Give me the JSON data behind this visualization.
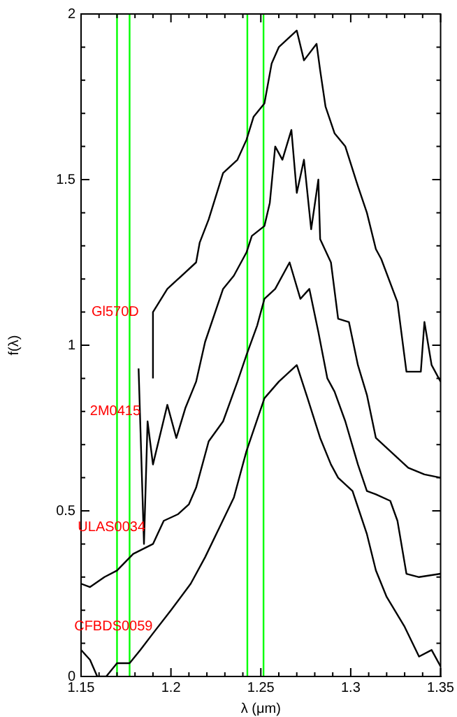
{
  "chart_data": {
    "type": "line",
    "xlabel": "λ (μm)",
    "ylabel": "f(λ)",
    "xlim": [
      1.15,
      1.35
    ],
    "ylim": [
      0,
      2
    ],
    "xticks": [
      1.15,
      {
        "value": 1.16,
        "label": null
      },
      {
        "value": 1.17,
        "label": null
      },
      {
        "value": 1.18,
        "label": null
      },
      {
        "value": 1.19,
        "label": null
      },
      1.2,
      {
        "value": 1.21,
        "label": null
      },
      {
        "value": 1.22,
        "label": null
      },
      {
        "value": 1.23,
        "label": null
      },
      {
        "value": 1.24,
        "label": null
      },
      1.25,
      {
        "value": 1.26,
        "label": null
      },
      {
        "value": 1.27,
        "label": null
      },
      {
        "value": 1.28,
        "label": null
      },
      {
        "value": 1.29,
        "label": null
      },
      1.3,
      {
        "value": 1.31,
        "label": null
      },
      {
        "value": 1.32,
        "label": null
      },
      {
        "value": 1.33,
        "label": null
      },
      {
        "value": 1.34,
        "label": null
      },
      1.35
    ],
    "yticks": [
      0,
      {
        "value": 0.1,
        "label": null
      },
      {
        "value": 0.2,
        "label": null
      },
      {
        "value": 0.3,
        "label": null
      },
      {
        "value": 0.4,
        "label": null
      },
      0.5,
      {
        "value": 0.6,
        "label": null
      },
      {
        "value": 0.7,
        "label": null
      },
      {
        "value": 0.8,
        "label": null
      },
      {
        "value": 0.9,
        "label": null
      },
      1,
      {
        "value": 1.1,
        "label": null
      },
      {
        "value": 1.2,
        "label": null
      },
      {
        "value": 1.3,
        "label": null
      },
      {
        "value": 1.4,
        "label": null
      },
      1.5,
      {
        "value": 1.6,
        "label": null
      },
      {
        "value": 1.7,
        "label": null
      },
      {
        "value": 1.8,
        "label": null
      },
      {
        "value": 1.9,
        "label": null
      },
      2
    ],
    "grid": false,
    "legend": false,
    "marker": "none",
    "line_style": "solid",
    "series": [
      {
        "color": "#000000",
        "x": [
          1.19,
          1.19,
          1.198,
          1.214,
          1.216,
          1.221,
          1.229,
          1.237,
          1.242,
          1.246,
          1.252,
          1.256,
          1.26,
          1.264,
          1.27,
          1.274,
          1.281,
          1.283,
          1.286,
          1.291,
          1.297,
          1.304,
          1.309,
          1.314,
          1.317,
          1.326,
          1.331,
          1.339,
          1.341,
          1.345,
          1.35
        ],
        "values": [
          0.9,
          1.1,
          1.17,
          1.25,
          1.31,
          1.38,
          1.52,
          1.56,
          1.62,
          1.69,
          1.73,
          1.85,
          1.9,
          1.92,
          1.95,
          1.86,
          1.91,
          1.83,
          1.72,
          1.64,
          1.6,
          1.48,
          1.4,
          1.29,
          1.26,
          1.13,
          0.92,
          0.92,
          1.07,
          0.94,
          0.89
        ]
      },
      {
        "color": "#000000",
        "x": [
          1.182,
          1.185,
          1.187,
          1.19,
          1.198,
          1.203,
          1.208,
          1.214,
          1.219,
          1.229,
          1.235,
          1.242,
          1.245,
          1.252,
          1.255,
          1.258,
          1.262,
          1.267,
          1.27,
          1.274,
          1.278,
          1.282,
          1.283,
          1.289,
          1.293,
          1.299,
          1.304,
          1.309,
          1.314,
          1.324,
          1.332,
          1.341,
          1.35
        ],
        "values": [
          0.93,
          0.4,
          0.77,
          0.64,
          0.82,
          0.72,
          0.81,
          0.89,
          1.01,
          1.17,
          1.21,
          1.28,
          1.33,
          1.36,
          1.43,
          1.6,
          1.56,
          1.65,
          1.46,
          1.56,
          1.35,
          1.5,
          1.32,
          1.25,
          1.08,
          1.07,
          0.94,
          0.85,
          0.72,
          0.67,
          0.63,
          0.61,
          0.6
        ]
      },
      {
        "color": "#000000",
        "x": [
          1.15,
          1.155,
          1.163,
          1.17,
          1.179,
          1.19,
          1.196,
          1.204,
          1.21,
          1.214,
          1.221,
          1.229,
          1.237,
          1.242,
          1.248,
          1.252,
          1.258,
          1.266,
          1.272,
          1.277,
          1.282,
          1.287,
          1.291,
          1.297,
          1.304,
          1.309,
          1.314,
          1.322,
          1.326,
          1.331,
          1.338,
          1.35
        ],
        "values": [
          0.28,
          0.27,
          0.3,
          0.32,
          0.37,
          0.4,
          0.47,
          0.49,
          0.52,
          0.57,
          0.71,
          0.77,
          0.89,
          0.97,
          1.06,
          1.14,
          1.17,
          1.25,
          1.14,
          1.17,
          1.04,
          0.9,
          0.86,
          0.77,
          0.64,
          0.56,
          0.55,
          0.53,
          0.47,
          0.31,
          0.3,
          0.31
        ]
      },
      {
        "color": "#000000",
        "x": [
          1.15,
          1.155,
          1.159,
          1.164,
          1.17,
          1.177,
          1.183,
          1.19,
          1.2,
          1.211,
          1.219,
          1.227,
          1.235,
          1.242,
          1.252,
          1.26,
          1.27,
          1.276,
          1.283,
          1.289,
          1.293,
          1.301,
          1.309,
          1.314,
          1.32,
          1.33,
          1.338,
          1.345,
          1.35
        ],
        "values": [
          0.08,
          0.05,
          0,
          0,
          0.04,
          0.04,
          0.08,
          0.13,
          0.2,
          0.28,
          0.36,
          0.45,
          0.54,
          0.68,
          0.84,
          0.89,
          0.94,
          0.84,
          0.72,
          0.64,
          0.6,
          0.56,
          0.43,
          0.32,
          0.24,
          0.15,
          0.06,
          0.08,
          0.03
        ]
      }
    ],
    "ref_lines": [
      {
        "axis": "x",
        "value": 1.17,
        "color": "#00ff00"
      },
      {
        "axis": "x",
        "value": 1.177,
        "color": "#00ff00"
      },
      {
        "axis": "x",
        "value": 1.2425,
        "color": "#00ff00"
      },
      {
        "axis": "x",
        "value": 1.2515,
        "color": "#00ff00"
      }
    ],
    "annotations": [
      {
        "text": "Gl570D",
        "x": 1.169,
        "y": 1.1
      },
      {
        "text": "2M0415",
        "x": 1.169,
        "y": 0.8
      },
      {
        "text": "ULAS0034",
        "x": 1.167,
        "y": 0.45
      },
      {
        "text": "CFBDS0059",
        "x": 1.168,
        "y": 0.15
      }
    ]
  }
}
